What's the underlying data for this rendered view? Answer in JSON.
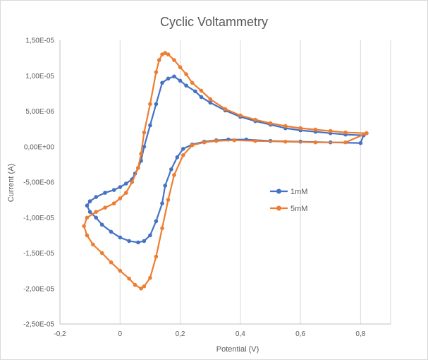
{
  "chart_data": {
    "type": "scatter",
    "title": "Cyclic Voltammetry",
    "xlabel": "Potential (V)",
    "ylabel": "Current (A)",
    "xlim": [
      -0.2,
      0.9
    ],
    "ylim": [
      -2.5e-05,
      1.5e-05
    ],
    "x_ticks": [
      -0.2,
      0,
      0.2,
      0.4,
      0.6,
      0.8
    ],
    "x_tick_labels": [
      "-0,2",
      "0",
      "0,2",
      "0,4",
      "0,6",
      "0,8"
    ],
    "y_ticks": [
      1.5e-05,
      1e-05,
      5e-06,
      0,
      -5e-06,
      -1e-05,
      -1.5e-05,
      -2e-05,
      -2.5e-05
    ],
    "y_tick_labels": [
      "1,50E-05",
      "1,00E-05",
      "5,00E-06",
      "0,00E+00",
      "-5,00E-06",
      "-1,00E-05",
      "-1,50E-05",
      "-2,00E-05",
      "-2,50E-05"
    ],
    "grid": "vertical",
    "legend_position": "right",
    "series": [
      {
        "name": "1mM",
        "color": "#4472c4",
        "x": [
          0.81,
          0.75,
          0.7,
          0.65,
          0.6,
          0.55,
          0.5,
          0.45,
          0.4,
          0.35,
          0.3,
          0.27,
          0.25,
          0.22,
          0.2,
          0.18,
          0.16,
          0.14,
          0.12,
          0.1,
          0.08,
          0.07,
          0.06,
          0.05,
          0.04,
          0.02,
          0,
          -0.02,
          -0.05,
          -0.08,
          -0.1,
          -0.11,
          -0.1,
          -0.08,
          -0.06,
          -0.03,
          0,
          0.03,
          0.06,
          0.08,
          0.1,
          0.12,
          0.14,
          0.15,
          0.17,
          0.19,
          0.21,
          0.24,
          0.28,
          0.32,
          0.36,
          0.42,
          0.5,
          0.6,
          0.7,
          0.8,
          0.81
        ],
        "y": [
          1.6e-06,
          1.7e-06,
          1.9e-06,
          2.1e-06,
          2.3e-06,
          2.6e-06,
          3.1e-06,
          3.6e-06,
          4.2e-06,
          5.1e-06,
          6.2e-06,
          7e-06,
          7.8e-06,
          8.6e-06,
          9.3e-06,
          9.9e-06,
          9.6e-06,
          9e-06,
          6e-06,
          3e-06,
          0,
          -2e-06,
          -3e-06,
          -3.8e-06,
          -4.6e-06,
          -5.2e-06,
          -5.7e-06,
          -6.1e-06,
          -6.5e-06,
          -7.1e-06,
          -7.7e-06,
          -8.3e-06,
          -9.2e-06,
          -1e-05,
          -1.1e-05,
          -1.2e-05,
          -1.28e-05,
          -1.33e-05,
          -1.35e-05,
          -1.33e-05,
          -1.25e-05,
          -1.05e-05,
          -8e-06,
          -5.5e-06,
          -3.2e-06,
          -1.5e-06,
          -3e-07,
          3e-07,
          7e-07,
          9e-07,
          1e-06,
          1e-06,
          8e-07,
          7e-07,
          6e-07,
          5e-07,
          1.6e-06
        ]
      },
      {
        "name": "5mM",
        "color": "#ed7d31",
        "x": [
          0.82,
          0.75,
          0.7,
          0.65,
          0.6,
          0.55,
          0.5,
          0.45,
          0.4,
          0.35,
          0.3,
          0.27,
          0.24,
          0.22,
          0.2,
          0.18,
          0.16,
          0.15,
          0.14,
          0.13,
          0.12,
          0.1,
          0.08,
          0.07,
          0.06,
          0.04,
          0.02,
          0,
          -0.02,
          -0.05,
          -0.08,
          -0.11,
          -0.12,
          -0.11,
          -0.09,
          -0.06,
          -0.03,
          0,
          0.03,
          0.05,
          0.07,
          0.08,
          0.1,
          0.12,
          0.14,
          0.16,
          0.18,
          0.21,
          0.24,
          0.28,
          0.32,
          0.38,
          0.45,
          0.55,
          0.65,
          0.75,
          0.82
        ],
        "y": [
          1.9e-06,
          2e-06,
          2.2e-06,
          2.4e-06,
          2.6e-06,
          2.9e-06,
          3.3e-06,
          3.8e-06,
          4.4e-06,
          5.3e-06,
          6.7e-06,
          7.9e-06,
          9e-06,
          1.02e-05,
          1.12e-05,
          1.22e-05,
          1.3e-05,
          1.32e-05,
          1.3e-05,
          1.22e-05,
          1.05e-05,
          6e-06,
          2e-06,
          -1e-06,
          -3e-06,
          -5e-06,
          -6.5e-06,
          -7.3e-06,
          -8e-06,
          -8.6e-06,
          -9.2e-06,
          -1e-05,
          -1.12e-05,
          -1.25e-05,
          -1.38e-05,
          -1.5e-05,
          -1.63e-05,
          -1.75e-05,
          -1.86e-05,
          -1.95e-05,
          -2e-05,
          -1.97e-05,
          -1.85e-05,
          -1.55e-05,
          -1.15e-05,
          -7.5e-06,
          -4e-06,
          -1.2e-06,
          2e-07,
          6e-07,
          8e-07,
          9e-07,
          8e-07,
          7e-07,
          6e-07,
          6e-07,
          1.9e-06
        ]
      }
    ]
  }
}
